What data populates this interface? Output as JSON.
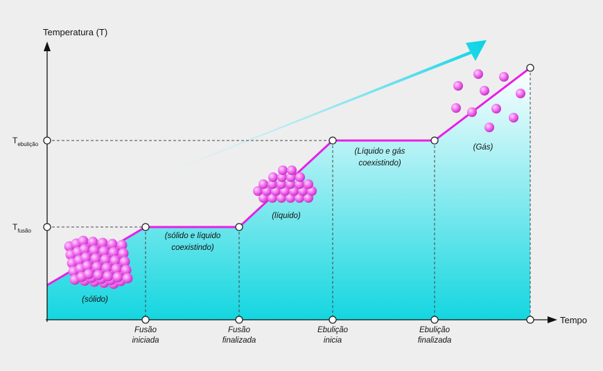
{
  "axes": {
    "y_label": "Temperatura (T)",
    "x_label": "Tempo"
  },
  "y_levels": [
    {
      "symbol": "T",
      "subscript": "ebulição"
    },
    {
      "symbol": "T",
      "subscript": "fusão"
    }
  ],
  "x_events": [
    {
      "lines": [
        "Fusão",
        "iniciada"
      ]
    },
    {
      "lines": [
        "Fusão",
        "finalizada"
      ]
    },
    {
      "lines": [
        "Ebulição",
        "inicia"
      ]
    },
    {
      "lines": [
        "Ebulição",
        "finalizada"
      ]
    }
  ],
  "phases": [
    {
      "lines": [
        "(sólido)"
      ]
    },
    {
      "lines": [
        "(sólido e líquido",
        "coexistindo)"
      ]
    },
    {
      "lines": [
        "(líquido)"
      ]
    },
    {
      "lines": [
        "(Líquido e gás",
        "coexistindo)"
      ]
    },
    {
      "lines": [
        "(Gás)"
      ]
    }
  ]
}
